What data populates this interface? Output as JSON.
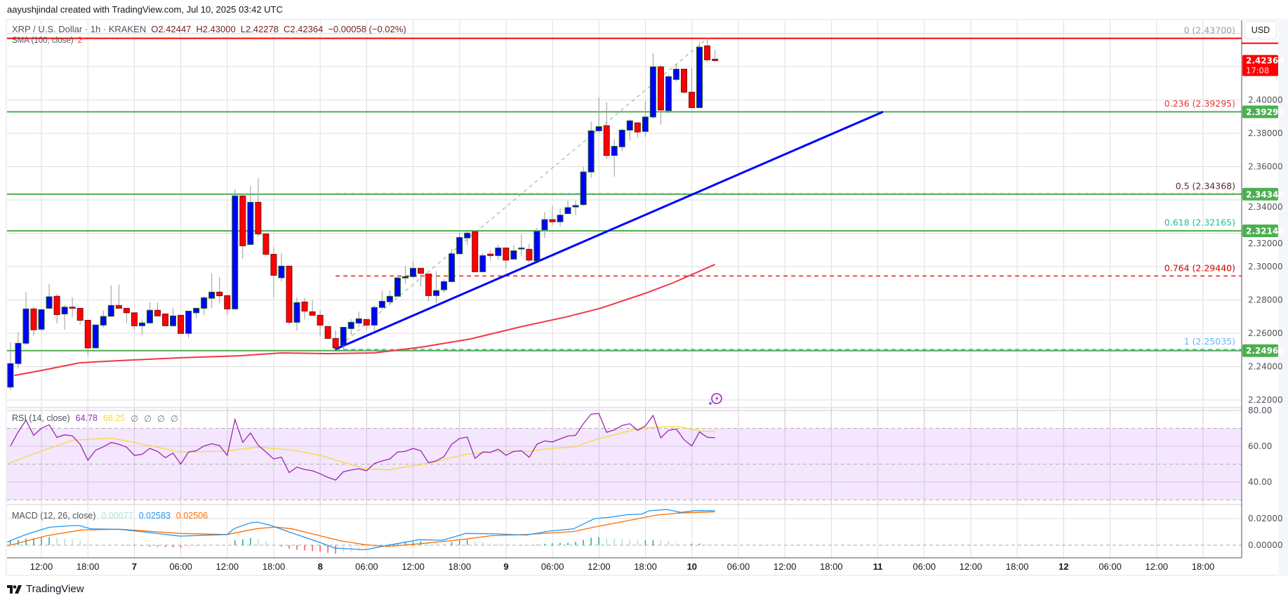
{
  "header": {
    "credit": "aayushjindal created with TradingView.com, Jul 10, 2025 03:42 UTC"
  },
  "legend": {
    "symbol": "XRP / U.S. Dollar · 1h · KRAKEN",
    "open": "O2.42447",
    "high": "H2.43000",
    "low": "L2.42278",
    "close": "C2.42364",
    "change": "−0.00058 (−0.02%)",
    "sma_label": "SMA (100, close)",
    "sma_value": "2"
  },
  "rsi_legend": {
    "label": "RSI (14, close)",
    "rsi": "64.78",
    "ma": "68.25",
    "n1": "∅",
    "n2": "∅",
    "n3": "∅",
    "n4": "∅"
  },
  "macd_legend": {
    "label": "MACD (12, 26, close)",
    "hist": "0.00077",
    "macd": "0.02583",
    "signal": "0.02506"
  },
  "currency": "USD",
  "branding": "TradingView",
  "colors": {
    "up": "#0000ff",
    "down": "#ff0000",
    "sma": "#f23645",
    "support": "#4caf50",
    "trend": "#0000ff",
    "rsi": "#9c27b0",
    "rsi_ma": "#fdd835",
    "macd": "#2196f3",
    "signal": "#ff6d00"
  },
  "chart_data": {
    "type": "candlestick",
    "title": "XRP / U.S. Dollar · 1h · KRAKEN",
    "ylim": [
      2.21,
      2.445
    ],
    "price_ticks": [
      "2.40000",
      "2.38000",
      "2.36000",
      "2.34000",
      "2.32000",
      "2.30000",
      "2.28000",
      "2.26000",
      "2.24000",
      "2.22000"
    ],
    "time_labels": [
      "12:00",
      "18:00",
      "7",
      "06:00",
      "12:00",
      "18:00",
      "8",
      "06:00",
      "12:00",
      "18:00",
      "9",
      "06:00",
      "12:00",
      "18:00",
      "10",
      "06:00",
      "12:00",
      "18:00",
      "11",
      "06:00",
      "12:00",
      "18:00",
      "12",
      "06:00",
      "12:00",
      "18:00"
    ],
    "candles_ohlc": [
      [
        2.2277,
        2.2545,
        2.226,
        2.2418
      ],
      [
        2.2418,
        2.2607,
        2.2389,
        2.254
      ],
      [
        2.254,
        2.2845,
        2.253,
        2.2746
      ],
      [
        2.2746,
        2.276,
        2.2586,
        2.2621
      ],
      [
        2.2624,
        2.2746,
        2.2615,
        2.2742
      ],
      [
        2.275,
        2.2895,
        2.2745,
        2.2819
      ],
      [
        2.2822,
        2.2836,
        2.266,
        2.2712
      ],
      [
        2.2716,
        2.2771,
        2.2621,
        2.2757
      ],
      [
        2.2757,
        2.2815,
        2.2698,
        2.275
      ],
      [
        2.275,
        2.275,
        2.2652,
        2.2678
      ],
      [
        2.2678,
        2.2678,
        2.247,
        2.2512
      ],
      [
        2.2512,
        2.265,
        2.2512,
        2.265
      ],
      [
        2.2649,
        2.2736,
        2.2635,
        2.2701
      ],
      [
        2.2702,
        2.2888,
        2.2702,
        2.2767
      ],
      [
        2.2767,
        2.2892,
        2.275,
        2.275
      ],
      [
        2.275,
        2.275,
        2.266,
        2.2723
      ],
      [
        2.2723,
        2.2723,
        2.2621,
        2.2645
      ],
      [
        2.2645,
        2.268,
        2.259,
        2.2662
      ],
      [
        2.2662,
        2.2786,
        2.2662,
        2.2738
      ],
      [
        2.2738,
        2.2786,
        2.2704,
        2.2704
      ],
      [
        2.2716,
        2.2716,
        2.2645,
        2.2645
      ],
      [
        2.2645,
        2.2752,
        2.2638,
        2.2704
      ],
      [
        2.2708,
        2.2708,
        2.2599,
        2.2599
      ],
      [
        2.2599,
        2.2733,
        2.2572,
        2.2733
      ],
      [
        2.2723,
        2.275,
        2.2691,
        2.275
      ],
      [
        2.275,
        2.282,
        2.2708,
        2.2813
      ],
      [
        2.281,
        2.296,
        2.2753,
        2.2847
      ],
      [
        2.2847,
        2.2939,
        2.2782,
        2.2825
      ],
      [
        2.2826,
        2.2826,
        2.2709,
        2.2746
      ],
      [
        2.2746,
        2.3466,
        2.2746,
        2.3424
      ],
      [
        2.3424,
        2.3424,
        2.3045,
        2.3125
      ],
      [
        2.3133,
        2.3484,
        2.3133,
        2.3386
      ],
      [
        2.3386,
        2.353,
        2.318,
        2.3196
      ],
      [
        2.3196,
        2.3196,
        2.3059,
        2.3074
      ],
      [
        2.3074,
        2.3117,
        2.2813,
        2.2948
      ],
      [
        2.2933,
        2.3082,
        2.291,
        2.3003
      ],
      [
        2.3003,
        2.3003,
        2.2652,
        2.2666
      ],
      [
        2.2666,
        2.2817,
        2.2615,
        2.2784
      ],
      [
        2.2788,
        2.281,
        2.2683,
        2.2733
      ],
      [
        2.2729,
        2.28,
        2.2708,
        2.2708
      ],
      [
        2.2708,
        2.2736,
        2.2582,
        2.2649
      ],
      [
        2.2641,
        2.2641,
        2.2569,
        2.2569
      ],
      [
        2.2569,
        2.2618,
        2.2503,
        2.2512
      ],
      [
        2.2527,
        2.264,
        2.2503,
        2.2636
      ],
      [
        2.2628,
        2.2684,
        2.259,
        2.2666
      ],
      [
        2.2661,
        2.273,
        2.2635,
        2.2687
      ],
      [
        2.2683,
        2.2683,
        2.2621,
        2.2649
      ],
      [
        2.2649,
        2.2767,
        2.261,
        2.2755
      ],
      [
        2.2755,
        2.2857,
        2.2742,
        2.2792
      ],
      [
        2.2789,
        2.2857,
        2.2767,
        2.2822
      ],
      [
        2.2822,
        2.2948,
        2.2822,
        2.2932
      ],
      [
        2.2932,
        2.3004,
        2.2897,
        2.294
      ],
      [
        2.294,
        2.3034,
        2.2932,
        2.299
      ],
      [
        2.299,
        2.299,
        2.288,
        2.296
      ],
      [
        2.2956,
        2.2956,
        2.2792,
        2.2826
      ],
      [
        2.2826,
        2.2972,
        2.2779,
        2.2856
      ],
      [
        2.2861,
        2.2925,
        2.2843,
        2.291
      ],
      [
        2.291,
        2.3105,
        2.291,
        2.3077
      ],
      [
        2.3077,
        2.3203,
        2.3077,
        2.3175
      ],
      [
        2.3172,
        2.321,
        2.313,
        2.3201
      ],
      [
        2.3209,
        2.3209,
        2.2969,
        2.2969
      ],
      [
        2.2969,
        2.308,
        2.2969,
        2.3066
      ],
      [
        2.3075,
        2.3099,
        2.3035,
        2.3066
      ],
      [
        2.3066,
        2.3132,
        2.3042,
        2.3112
      ],
      [
        2.3112,
        2.3112,
        2.2988,
        2.3039
      ],
      [
        2.3045,
        2.3129,
        2.3045,
        2.3095
      ],
      [
        2.3108,
        2.3194,
        2.3063,
        2.3112
      ],
      [
        2.3104,
        2.3138,
        2.3021,
        2.3039
      ],
      [
        2.3035,
        2.3232,
        2.3035,
        2.3211
      ],
      [
        2.3221,
        2.3327,
        2.3171,
        2.3282
      ],
      [
        2.3282,
        2.3365,
        2.3249,
        2.3269
      ],
      [
        2.3269,
        2.3351,
        2.3242,
        2.3309
      ],
      [
        2.3318,
        2.3395,
        2.3318,
        2.3354
      ],
      [
        2.3358,
        2.3395,
        2.3309,
        2.3367
      ],
      [
        2.3372,
        2.3599,
        2.3365,
        2.3568
      ],
      [
        2.3568,
        2.3871,
        2.3534,
        2.3815
      ],
      [
        2.3815,
        2.4015,
        2.38,
        2.384
      ],
      [
        2.3846,
        2.3988,
        2.3646,
        2.3667
      ],
      [
        2.3667,
        2.3767,
        2.354,
        2.3722
      ],
      [
        2.3719,
        2.3828,
        2.3692,
        2.3819
      ],
      [
        2.3819,
        2.3885,
        2.3756,
        2.3875
      ],
      [
        2.3863,
        2.3863,
        2.3773,
        2.3808
      ],
      [
        2.3811,
        2.3994,
        2.3779,
        2.3898
      ],
      [
        2.3898,
        2.4282,
        2.3887,
        2.4199
      ],
      [
        2.4199,
        2.421,
        2.3852,
        2.394
      ],
      [
        2.3936,
        2.4151,
        2.3919,
        2.414
      ],
      [
        2.4123,
        2.4214,
        2.4111,
        2.4185
      ],
      [
        2.4185,
        2.4185,
        2.4036,
        2.4047
      ],
      [
        2.4047,
        2.4193,
        2.3954,
        2.3954
      ],
      [
        2.3954,
        2.4348,
        2.3954,
        2.4317
      ],
      [
        2.4325,
        2.437,
        2.4228,
        2.4241
      ],
      [
        2.42447,
        2.43,
        2.42278,
        2.42364
      ]
    ],
    "sma100": [
      [
        0.5,
        2.2347
      ],
      [
        4,
        2.2377
      ],
      [
        9,
        2.2423
      ],
      [
        14,
        2.2436
      ],
      [
        22,
        2.2453
      ],
      [
        29.5,
        2.2465
      ],
      [
        35,
        2.2482
      ],
      [
        41,
        2.2478
      ],
      [
        47,
        2.2482
      ],
      [
        53,
        2.2516
      ],
      [
        59.4,
        2.2566
      ],
      [
        66,
        2.264
      ],
      [
        72,
        2.27
      ],
      [
        76.3,
        2.2751
      ],
      [
        82,
        2.284
      ],
      [
        85.6,
        2.2903
      ],
      [
        91,
        2.3013
      ]
    ],
    "horizontal_levels": [
      {
        "price": 2.39292,
        "label": "2.39292"
      },
      {
        "price": 2.34346,
        "label": "2.34346"
      },
      {
        "price": 2.32148,
        "label": "2.32148"
      },
      {
        "price": 2.2496,
        "label": "2.24960"
      }
    ],
    "current_price": {
      "price": 2.42364,
      "label": "2.42364",
      "countdown": "17:08"
    },
    "fib_levels": [
      {
        "ratio": 0,
        "price": 2.437,
        "label": "0 (2.43700)",
        "color": "#9e9e9e",
        "line": "#ff0000",
        "style": "solid"
      },
      {
        "ratio": 0.236,
        "price": 2.39295,
        "label": "0.236 (2.39295)",
        "color": "#e53935",
        "line": "#e53935",
        "style": "none"
      },
      {
        "ratio": 0.5,
        "price": 2.34368,
        "label": "0.5 (2.34368)",
        "color": "#5d1f3c",
        "line": "#5d1f3c",
        "style": "dashed"
      },
      {
        "ratio": 0.618,
        "price": 2.32165,
        "label": "0.618 (2.32165)",
        "color": "#1fbf8f",
        "line": "#1fbf8f",
        "style": "none"
      },
      {
        "ratio": 0.764,
        "price": 2.2944,
        "label": "0.764 (2.29440)",
        "color": "#d50000",
        "line": "#ff0000",
        "style": "dashed"
      },
      {
        "ratio": 1,
        "price": 2.25035,
        "label": "1 (2.25035)",
        "color": "#64b5f6",
        "line": "#42a5f5",
        "style": "dashed"
      }
    ],
    "fib_anchor": {
      "from": [
        42,
        2.25035
      ],
      "to": [
        90,
        2.437
      ]
    },
    "trend_line": {
      "from": [
        41.9,
        2.2503
      ],
      "to": [
        112.7,
        2.39292
      ]
    },
    "rsi": {
      "ticks": [
        "80.00",
        "60.00",
        "40.00"
      ],
      "values": [
        60.1,
        68.0,
        74.6,
        66.1,
        70.0,
        72.0,
        65.0,
        66.4,
        65.8,
        61.1,
        52.2,
        57.8,
        59.7,
        62.1,
        61.1,
        59.5,
        54.9,
        55.5,
        58.8,
        57.1,
        53.6,
        56.2,
        50.0,
        56.8,
        57.5,
        60.1,
        61.4,
        60.4,
        54.9,
        75.0,
        62.1,
        67.4,
        60.5,
        56.8,
        52.9,
        53.9,
        45.3,
        48.3,
        47.0,
        46.3,
        44.6,
        42.6,
        41.1,
        45.7,
        46.7,
        47.4,
        46.3,
        50.3,
        51.8,
        52.9,
        56.8,
        57.1,
        58.8,
        57.5,
        50.8,
        51.8,
        54.2,
        61.1,
        64.3,
        65.1,
        53.2,
        56.8,
        56.6,
        58.4,
        54.9,
        57.1,
        57.5,
        53.8,
        61.1,
        63.0,
        62.4,
        64.1,
        65.7,
        66.1,
        72.6,
        77.9,
        78.3,
        67.8,
        69.1,
        71.6,
        72.6,
        68.9,
        71.3,
        77.2,
        64.7,
        68.9,
        69.6,
        63.7,
        60.1,
        68.0,
        65.0,
        64.78
      ],
      "ma": [
        [
          -0.4,
          50
        ],
        [
          2,
          54.2
        ],
        [
          5,
          58.8
        ],
        [
          8,
          63.4
        ],
        [
          13.1,
          64.5
        ],
        [
          16,
          62.1
        ],
        [
          21.9,
          56.8
        ],
        [
          27.6,
          57.2
        ],
        [
          31.9,
          59.5
        ],
        [
          36.4,
          57.9
        ],
        [
          40,
          54.9
        ],
        [
          43,
          51
        ],
        [
          45.8,
          47.4
        ],
        [
          48.8,
          46.8
        ],
        [
          54,
          50.5
        ],
        [
          58.8,
          55.5
        ],
        [
          62.7,
          57.2
        ],
        [
          67,
          57.1
        ],
        [
          69.7,
          58.8
        ],
        [
          72.7,
          59.5
        ],
        [
          75.6,
          63.7
        ],
        [
          80.6,
          69.3
        ],
        [
          83,
          70.7
        ],
        [
          86.3,
          71
        ],
        [
          89.3,
          68.4
        ],
        [
          91,
          68.25
        ]
      ],
      "bands": [
        70,
        50,
        30
      ]
    },
    "macd": {
      "ticks": [
        "0.02000",
        "0.00000"
      ],
      "macd": [
        [
          -0.4,
          0.0024
        ],
        [
          2,
          0.008
        ],
        [
          5,
          0.0134
        ],
        [
          8,
          0.0147
        ],
        [
          8.9,
          0.0147
        ],
        [
          10.4,
          0.0122
        ],
        [
          14,
          0.0119
        ],
        [
          16.8,
          0.0102
        ],
        [
          21.9,
          0.0068
        ],
        [
          28,
          0.008
        ],
        [
          28.9,
          0.0125
        ],
        [
          31,
          0.0168
        ],
        [
          31.9,
          0.0173
        ],
        [
          33.7,
          0.0147
        ],
        [
          36.1,
          0.0097
        ],
        [
          40,
          0.002
        ],
        [
          41.9,
          -0.0022
        ],
        [
          45.8,
          -0.0034
        ],
        [
          50,
          0.0012
        ],
        [
          52.8,
          0.0041
        ],
        [
          55.8,
          0.0037
        ],
        [
          58.8,
          0.0088
        ],
        [
          62.7,
          0.0085
        ],
        [
          66.6,
          0.0076
        ],
        [
          69.6,
          0.0105
        ],
        [
          72.7,
          0.0122
        ],
        [
          75.4,
          0.0198
        ],
        [
          77.5,
          0.021
        ],
        [
          79.7,
          0.0229
        ],
        [
          81.5,
          0.0232
        ],
        [
          82.5,
          0.0258
        ],
        [
          84.8,
          0.0268
        ],
        [
          86.6,
          0.0246
        ],
        [
          88.4,
          0.0259
        ],
        [
          91,
          0.02583
        ]
      ],
      "signal": [
        [
          -0.4,
          -0.0005
        ],
        [
          4.7,
          0.0071
        ],
        [
          9.2,
          0.0114
        ],
        [
          14.4,
          0.0119
        ],
        [
          21.9,
          0.0088
        ],
        [
          28,
          0.008
        ],
        [
          31.9,
          0.0125
        ],
        [
          34.3,
          0.0136
        ],
        [
          36.4,
          0.0122
        ],
        [
          42.5,
          0.0034
        ],
        [
          45.8,
          0.0003
        ],
        [
          48.8,
          -0.001
        ],
        [
          53.1,
          0.0012
        ],
        [
          56.1,
          0.0029
        ],
        [
          58.8,
          0.0046
        ],
        [
          62.1,
          0.0071
        ],
        [
          66.6,
          0.008
        ],
        [
          72.7,
          0.0102
        ],
        [
          75.4,
          0.0136
        ],
        [
          80.3,
          0.019
        ],
        [
          83.3,
          0.0224
        ],
        [
          86.3,
          0.0241
        ],
        [
          91,
          0.02506
        ]
      ]
    }
  }
}
